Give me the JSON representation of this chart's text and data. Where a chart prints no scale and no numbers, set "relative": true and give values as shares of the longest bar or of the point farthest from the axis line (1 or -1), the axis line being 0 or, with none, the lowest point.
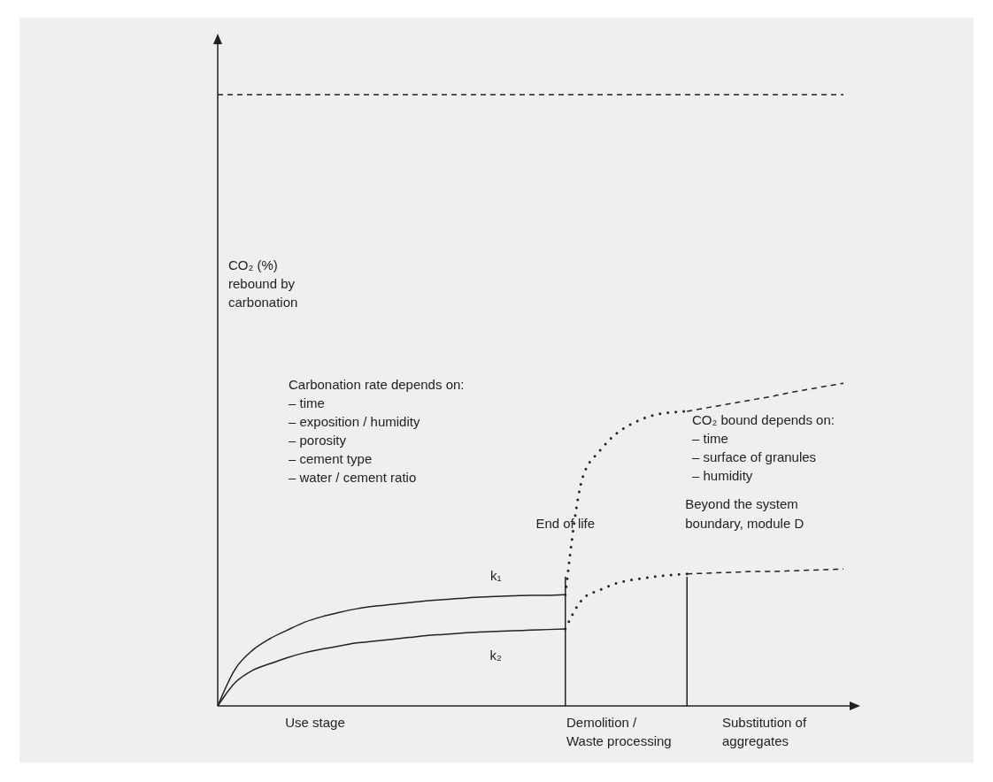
{
  "chart_data": {
    "type": "line",
    "relative": true,
    "ylabel": "CO₂ (%) rebound by carbonation",
    "categories": [
      null,
      null,
      null,
      null,
      null,
      null,
      null,
      null,
      null,
      null,
      null,
      null,
      null,
      null,
      null,
      null,
      null,
      null,
      null,
      null,
      null,
      null,
      null,
      null,
      null,
      null,
      null,
      null,
      null,
      null,
      null,
      null,
      null,
      null,
      null,
      null,
      null
    ],
    "series": [
      {
        "color": "#222222",
        "line_style": "dashed",
        "values": [
          1,
          1,
          1,
          1,
          1,
          1,
          1,
          1,
          1,
          1,
          1,
          1,
          1,
          1,
          1,
          1,
          1,
          1,
          1,
          1,
          1,
          1,
          1,
          1,
          1,
          1,
          1,
          1,
          1,
          1,
          1,
          1,
          1,
          1,
          1,
          1,
          1
        ]
      },
      {
        "name": "k₁",
        "color": "#222222",
        "line_style": "solid",
        "values": [
          0,
          0.06,
          0.091,
          0.11,
          0.124,
          0.137,
          0.146,
          0.153,
          0.159,
          0.163,
          0.166,
          0.169,
          0.172,
          0.174,
          0.176,
          0.178,
          0.179,
          0.18,
          0.181,
          0.181,
          0.182,
          null,
          null,
          null,
          null,
          null,
          null,
          null,
          null,
          null,
          null,
          null,
          null,
          null,
          null,
          null,
          null
        ]
      },
      {
        "name": "k₂",
        "color": "#222222",
        "line_style": "solid",
        "values": [
          0,
          0.038,
          0.058,
          0.069,
          0.079,
          0.087,
          0.093,
          0.098,
          0.103,
          0.106,
          0.109,
          0.112,
          0.115,
          0.117,
          0.119,
          0.121,
          0.122,
          0.123,
          0.124,
          0.125,
          0.126,
          null,
          null,
          null,
          null,
          null,
          null,
          null,
          null,
          null,
          null,
          null,
          null,
          null,
          null,
          null,
          null
        ]
      },
      {
        "color": "#222222",
        "line_style": "dotted",
        "values": [
          null,
          null,
          null,
          null,
          null,
          null,
          null,
          null,
          null,
          null,
          null,
          null,
          null,
          null,
          null,
          null,
          null,
          null,
          null,
          null,
          0.182,
          0.374,
          0.418,
          0.447,
          0.464,
          0.475,
          0.48,
          0.482,
          null,
          null,
          null,
          null,
          null,
          null,
          null,
          null,
          null
        ]
      },
      {
        "color": "#222222",
        "line_style": "dashed",
        "values": [
          null,
          null,
          null,
          null,
          null,
          null,
          null,
          null,
          null,
          null,
          null,
          null,
          null,
          null,
          null,
          null,
          null,
          null,
          null,
          null,
          null,
          null,
          null,
          null,
          null,
          null,
          null,
          0.482,
          0.487,
          0.492,
          0.497,
          0.502,
          0.507,
          0.513,
          0.518,
          0.523,
          0.528
        ]
      },
      {
        "color": "#222222",
        "line_style": "dotted",
        "values": [
          null,
          null,
          null,
          null,
          null,
          null,
          null,
          null,
          null,
          null,
          null,
          null,
          null,
          null,
          null,
          null,
          null,
          null,
          null,
          null,
          0.126,
          0.175,
          0.19,
          0.201,
          0.207,
          0.211,
          0.214,
          0.216,
          null,
          null,
          null,
          null,
          null,
          null,
          null,
          null,
          null
        ]
      },
      {
        "color": "#222222",
        "line_style": "dashed",
        "values": [
          null,
          null,
          null,
          null,
          null,
          null,
          null,
          null,
          null,
          null,
          null,
          null,
          null,
          null,
          null,
          null,
          null,
          null,
          null,
          null,
          null,
          null,
          null,
          null,
          null,
          null,
          null,
          0.216,
          0.217,
          0.218,
          0.219,
          0.22,
          0.22,
          0.221,
          0.222,
          0.223,
          0.224
        ]
      }
    ],
    "annotations": [
      "Use stage",
      "Demolition / Waste processing",
      "Substitution of aggregates",
      "Carbonation rate depends on:\n– time\n– exposition / humidity\n– porosity\n– cement type\n– water / cement ratio",
      "CO₂ bound depends on:\n– time\n– surface of granules\n– humidity",
      "End of life",
      "Beyond the system boundary, module D"
    ]
  }
}
